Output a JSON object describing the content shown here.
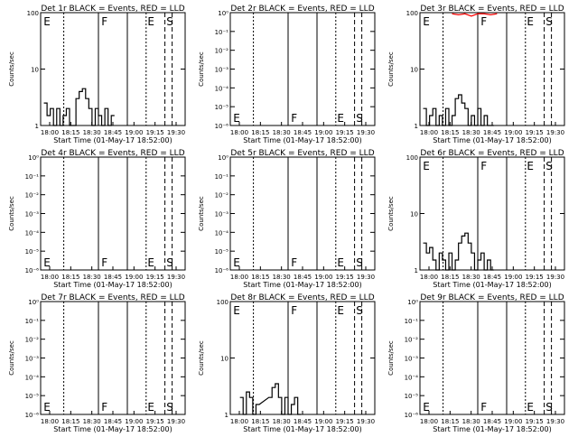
{
  "time_ticks": [
    "18:00",
    "18:15",
    "18:30",
    "18:45",
    "19:00",
    "19:15",
    "19:30"
  ],
  "xlabel": "Start Time (01-May-17 18:52:00)",
  "ylabel": "Counts/sec",
  "chart_data": [
    {
      "type": "line",
      "title": "Det 1r BLACK = Events, RED = LLD",
      "xlabel": "Start Time (01-May-17 18:52:00)",
      "ylabel": "Counts/sec",
      "yscale": "log",
      "ylim": [
        1,
        100
      ],
      "ytick_labels": [
        "1",
        "10",
        "100"
      ],
      "xlim": [
        0,
        90
      ],
      "markers": [
        "E",
        "F",
        "E",
        "S"
      ],
      "events_x": [
        2,
        4,
        6,
        8,
        10,
        12,
        14,
        16,
        18,
        20,
        22,
        24,
        26,
        28,
        30,
        32,
        34,
        36,
        38,
        40,
        42,
        44
      ],
      "events": [
        2.5,
        1.5,
        2,
        1,
        2,
        1,
        1.5,
        2,
        1,
        1,
        3,
        4,
        4.5,
        3,
        2,
        1,
        2,
        1.5,
        1,
        2,
        1,
        1.5
      ],
      "lld": []
    },
    {
      "type": "line",
      "title": "Det 2r BLACK = Events, RED = LLD",
      "xlabel": "Start Time (01-May-17 18:52:00)",
      "ylabel": "Counts/sec",
      "yscale": "log",
      "ylim": [
        1e-06,
        1
      ],
      "ytick_labels": [
        "10⁻⁶",
        "10⁻⁵",
        "10⁻⁴",
        "10⁻³",
        "10⁻²",
        "10⁻¹",
        "10⁰"
      ],
      "xlim": [
        0,
        90
      ],
      "markers": [
        "E",
        "F",
        "E",
        "S"
      ],
      "events_x": [],
      "events": [],
      "lld": []
    },
    {
      "type": "line",
      "title": "Det 3r BLACK = Events, RED = LLD",
      "xlabel": "Start Time (01-May-17 18:52:00)",
      "ylabel": "Counts/sec",
      "yscale": "log",
      "ylim": [
        1,
        100
      ],
      "ytick_labels": [
        "1",
        "10",
        "100"
      ],
      "xlim": [
        0,
        90
      ],
      "markers": [
        "E",
        "F",
        "E",
        "S"
      ],
      "events_x": [
        2,
        4,
        6,
        8,
        10,
        12,
        14,
        16,
        18,
        20,
        22,
        24,
        26,
        28,
        30,
        32,
        34,
        36,
        38,
        40,
        42,
        44
      ],
      "events": [
        2,
        1,
        1.5,
        2,
        1,
        1.5,
        1,
        2,
        1,
        1.5,
        3,
        3.5,
        2.5,
        2,
        1,
        1.5,
        1,
        2,
        1,
        1.5,
        1,
        1
      ],
      "lld": [
        100,
        95,
        100,
        90,
        100,
        100,
        95,
        100
      ]
    },
    {
      "type": "line",
      "title": "Det 4r BLACK = Events, RED = LLD",
      "xlabel": "Start Time (01-May-17 18:52:00)",
      "ylabel": "Counts/sec",
      "yscale": "log",
      "ylim": [
        1e-06,
        1
      ],
      "ytick_labels": [
        "10⁻⁶",
        "10⁻⁵",
        "10⁻⁴",
        "10⁻³",
        "10⁻²",
        "10⁻¹",
        "10⁰"
      ],
      "xlim": [
        0,
        90
      ],
      "markers": [
        "E",
        "F",
        "E",
        "S"
      ],
      "events_x": [],
      "events": [],
      "lld": []
    },
    {
      "type": "line",
      "title": "Det 5r BLACK = Events, RED = LLD",
      "xlabel": "Start Time (01-May-17 18:52:00)",
      "ylabel": "Counts/sec",
      "yscale": "log",
      "ylim": [
        1e-06,
        1
      ],
      "ytick_labels": [
        "10⁻⁶",
        "10⁻⁵",
        "10⁻⁴",
        "10⁻³",
        "10⁻²",
        "10⁻¹",
        "10⁰"
      ],
      "xlim": [
        0,
        90
      ],
      "markers": [
        "E",
        "F",
        "E",
        "S"
      ],
      "events_x": [],
      "events": [],
      "lld": []
    },
    {
      "type": "line",
      "title": "Det 6r BLACK = Events, RED = LLD",
      "xlabel": "Start Time (01-May-17 18:52:00)",
      "ylabel": "Counts/sec",
      "yscale": "log",
      "ylim": [
        1,
        100
      ],
      "ytick_labels": [
        "1",
        "10",
        "100"
      ],
      "xlim": [
        0,
        90
      ],
      "markers": [
        "E",
        "F",
        "E",
        "S"
      ],
      "events_x": [
        2,
        4,
        6,
        8,
        10,
        12,
        14,
        16,
        18,
        20,
        22,
        24,
        26,
        28,
        30,
        32,
        34,
        36,
        38,
        40,
        42,
        44
      ],
      "events": [
        3,
        2,
        2.5,
        1.5,
        1,
        2,
        1.5,
        1,
        2,
        1,
        1.5,
        3,
        4,
        4.5,
        3,
        2,
        1,
        1.5,
        2,
        1,
        1.5,
        1
      ],
      "lld": []
    },
    {
      "type": "line",
      "title": "Det 7r BLACK = Events, RED = LLD",
      "xlabel": "Start Time (01-May-17 18:52:00)",
      "ylabel": "Counts/sec",
      "yscale": "log",
      "ylim": [
        1e-06,
        1
      ],
      "ytick_labels": [
        "10⁻⁶",
        "10⁻⁵",
        "10⁻⁴",
        "10⁻³",
        "10⁻²",
        "10⁻¹",
        "10⁰"
      ],
      "xlim": [
        0,
        90
      ],
      "markers": [
        "E",
        "F",
        "E",
        "S"
      ],
      "events_x": [],
      "events": [],
      "lld": []
    },
    {
      "type": "line",
      "title": "Det 8r BLACK = Events, RED = LLD",
      "xlabel": "Start Time (01-May-17 18:52:00)",
      "ylabel": "Counts/sec",
      "yscale": "log",
      "ylim": [
        1,
        100
      ],
      "ytick_labels": [
        "1",
        "10",
        "100"
      ],
      "xlim": [
        0,
        90
      ],
      "markers": [
        "E",
        "F",
        "E",
        "S"
      ],
      "events_x": [
        6,
        8,
        10,
        12,
        14,
        16,
        24,
        26,
        28,
        30,
        32,
        34,
        36,
        38,
        40,
        42
      ],
      "events": [
        2,
        1,
        2.5,
        2,
        1,
        1.5,
        2,
        3,
        3.5,
        2,
        1,
        2,
        1,
        1.5,
        2,
        1
      ],
      "lld": []
    },
    {
      "type": "line",
      "title": "Det 9r BLACK = Events, RED = LLD",
      "xlabel": "Start Time (01-May-17 18:52:00)",
      "ylabel": "Counts/sec",
      "yscale": "log",
      "ylim": [
        1e-06,
        1
      ],
      "ytick_labels": [
        "10⁻⁶",
        "10⁻⁵",
        "10⁻⁴",
        "10⁻³",
        "10⁻²",
        "10⁻¹",
        "10⁰"
      ],
      "xlim": [
        0,
        90
      ],
      "markers": [
        "E",
        "F",
        "E",
        "S"
      ],
      "events_x": [],
      "events": [],
      "lld": []
    }
  ]
}
